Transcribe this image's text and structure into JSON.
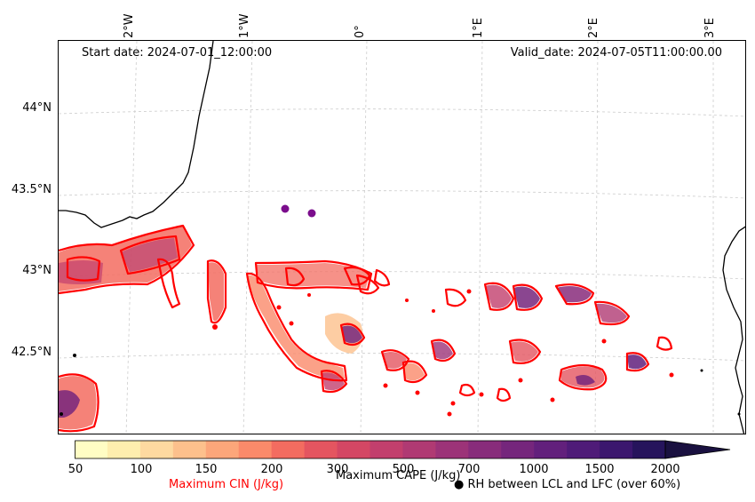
{
  "header": {
    "start_date": "Start date: 2024-07-01_12:00:00",
    "valid_date": "Valid_date: 2024-07-05T11:00:00.00"
  },
  "longitude_labels": [
    "2°W",
    "1°W",
    "0°",
    "1°E",
    "2°E",
    "3°E"
  ],
  "latitude_labels": [
    "44°N",
    "43.5°N",
    "43°N",
    "42.5°N"
  ],
  "colorbar": {
    "ticks": [
      "50",
      "100",
      "150",
      "200",
      "300",
      "500",
      "700",
      "1000",
      "1500",
      "2000"
    ],
    "colors": [
      "#fffdc4",
      "#feeeae",
      "#fed9a0",
      "#fdc08c",
      "#fca67a",
      "#fa8a6a",
      "#f36c60",
      "#e45560",
      "#d44764",
      "#c23f6d",
      "#b03a73",
      "#9c3378",
      "#882c7b",
      "#75267c",
      "#62207c",
      "#4f1b78",
      "#3b176e",
      "#26145c"
    ],
    "extend_color": "#1a1140"
  },
  "legend": {
    "cin_label": "Maximum CIN (J/kg)",
    "cin_color": "#ff0000",
    "cape_label": "Maximum CAPE (J/kg)",
    "rh_label": "● RH between LCL and LFC (over 60%)",
    "rh_color": "#7b0d8c"
  }
}
